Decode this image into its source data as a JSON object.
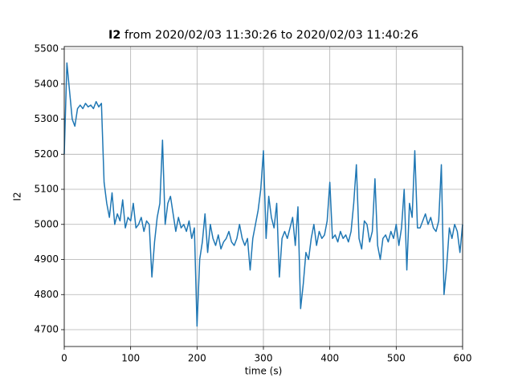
{
  "chart_data": {
    "type": "line",
    "title": {
      "bold": "I2",
      "rest": "from 2020/02/03 11:30:26 to 2020/02/03 11:40:26"
    },
    "x_label": "time (s)",
    "y_label": "I2",
    "color": "#1f77b4",
    "grid": true,
    "xlim": [
      0,
      600
    ],
    "xticks": [
      0,
      100,
      200,
      300,
      400,
      500,
      600
    ],
    "ylim": [
      4652,
      5507
    ],
    "yticks": [
      4700,
      4800,
      4900,
      5000,
      5100,
      5200,
      5300,
      5400,
      5500
    ],
    "x": [
      0,
      4,
      8,
      12,
      16,
      20,
      24,
      28,
      32,
      36,
      40,
      44,
      48,
      52,
      56,
      60,
      64,
      68,
      72,
      76,
      80,
      84,
      88,
      92,
      96,
      100,
      104,
      108,
      112,
      116,
      120,
      124,
      128,
      132,
      136,
      140,
      144,
      148,
      152,
      156,
      160,
      164,
      168,
      172,
      176,
      180,
      184,
      188,
      192,
      196,
      200,
      204,
      208,
      212,
      216,
      220,
      224,
      228,
      232,
      236,
      240,
      244,
      248,
      252,
      256,
      260,
      264,
      268,
      272,
      276,
      280,
      284,
      288,
      292,
      296,
      300,
      304,
      308,
      312,
      316,
      320,
      324,
      328,
      332,
      336,
      340,
      344,
      348,
      352,
      356,
      360,
      364,
      368,
      372,
      376,
      380,
      384,
      388,
      392,
      396,
      400,
      404,
      408,
      412,
      416,
      420,
      424,
      428,
      432,
      436,
      440,
      444,
      448,
      452,
      456,
      460,
      464,
      468,
      472,
      476,
      480,
      484,
      488,
      492,
      496,
      500,
      504,
      508,
      512,
      516,
      520,
      524,
      528,
      532,
      536,
      540,
      544,
      548,
      552,
      556,
      560,
      564,
      568,
      572,
      576,
      580,
      584,
      588,
      592,
      596,
      600
    ],
    "values": [
      5200,
      5460,
      5380,
      5300,
      5280,
      5330,
      5340,
      5330,
      5345,
      5335,
      5340,
      5330,
      5350,
      5335,
      5345,
      5120,
      5060,
      5020,
      5090,
      5000,
      5030,
      5010,
      5070,
      4990,
      5020,
      5010,
      5060,
      4990,
      5000,
      5020,
      4980,
      5010,
      5000,
      4850,
      4950,
      5020,
      5060,
      5240,
      5000,
      5060,
      5080,
      5030,
      4980,
      5020,
      4990,
      5000,
      4980,
      5010,
      4960,
      4990,
      4710,
      4900,
      4950,
      5030,
      4920,
      5000,
      4960,
      4940,
      4970,
      4930,
      4950,
      4960,
      4980,
      4950,
      4940,
      4960,
      5000,
      4960,
      4940,
      4960,
      4870,
      4960,
      5000,
      5040,
      5100,
      5210,
      4960,
      5080,
      5020,
      4990,
      5060,
      4850,
      4960,
      4980,
      4960,
      4990,
      5020,
      4940,
      5050,
      4760,
      4830,
      4920,
      4900,
      4960,
      5000,
      4940,
      4980,
      4960,
      4970,
      5010,
      5120,
      4960,
      4970,
      4950,
      4980,
      4960,
      4970,
      4950,
      4980,
      5060,
      5170,
      4960,
      4930,
      5010,
      5000,
      4950,
      4980,
      5130,
      4940,
      4900,
      4960,
      4970,
      4950,
      4980,
      4960,
      5000,
      4940,
      4990,
      5100,
      4870,
      5060,
      5020,
      5210,
      4990,
      4990,
      5010,
      5030,
      5000,
      5020,
      4990,
      4980,
      5010,
      5170,
      4800,
      4880,
      4990,
      4960,
      5000,
      4980,
      4920,
      5000
    ]
  }
}
